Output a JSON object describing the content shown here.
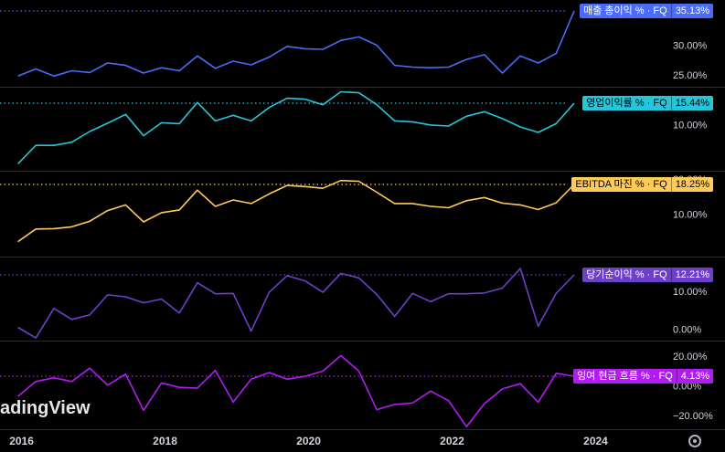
{
  "watermark": "adingView",
  "x_axis": {
    "labels": [
      "2016",
      "2018",
      "2020",
      "2022",
      "2024"
    ],
    "range": [
      2015.7,
      2025.0
    ]
  },
  "chart_data": [
    {
      "type": "line",
      "title": "매출 총이익 % · FQ",
      "last_value_label": "35.13%",
      "color": "#4a6cf7",
      "ylim": [
        23.0,
        37.0
      ],
      "y_ticks": [
        {
          "v": 25,
          "label": "25.00%"
        },
        {
          "v": 30,
          "label": "30.00%"
        }
      ],
      "x": [
        2015.95,
        2016.2,
        2016.45,
        2016.7,
        2016.95,
        2017.2,
        2017.45,
        2017.7,
        2017.95,
        2018.2,
        2018.45,
        2018.7,
        2018.95,
        2019.2,
        2019.45,
        2019.7,
        2019.95,
        2020.2,
        2020.45,
        2020.7,
        2020.95,
        2021.2,
        2021.45,
        2021.7,
        2021.95,
        2022.2,
        2022.45,
        2022.7,
        2022.95,
        2023.2,
        2023.45
      ],
      "values": [
        24.8,
        26.0,
        24.8,
        25.7,
        25.4,
        27.0,
        26.6,
        25.3,
        26.2,
        25.7,
        28.2,
        26.1,
        27.3,
        26.7,
        28.0,
        29.8,
        29.4,
        29.3,
        30.8,
        31.4,
        30.0,
        26.6,
        26.3,
        26.2,
        26.3,
        27.6,
        28.4,
        25.3,
        28.2,
        27.0,
        28.6
      ]
    },
    {
      "type": "line",
      "title": "영업이익률 % · FQ",
      "last_value_label": "15.44%",
      "color": "#26c6da",
      "ylim": [
        0.0,
        18.0
      ],
      "y_ticks": [
        {
          "v": 10,
          "label": "10.00%"
        }
      ],
      "x": [
        2015.95,
        2016.2,
        2016.45,
        2016.7,
        2016.95,
        2017.2,
        2017.45,
        2017.7,
        2017.95,
        2018.2,
        2018.45,
        2018.7,
        2018.95,
        2019.2,
        2019.45,
        2019.7,
        2019.95,
        2020.2,
        2020.45,
        2020.7,
        2020.95,
        2021.2,
        2021.45,
        2021.7,
        2021.95,
        2022.2,
        2022.45,
        2022.7,
        2022.95,
        2023.2,
        2023.45
      ],
      "values": [
        1.5,
        5.5,
        5.5,
        6.2,
        8.5,
        10.3,
        12.2,
        7.6,
        10.4,
        10.2,
        14.8,
        10.8,
        12.0,
        10.8,
        13.7,
        15.7,
        15.5,
        14.3,
        17.1,
        16.9,
        14.3,
        10.8,
        10.6,
        9.9,
        9.7,
        11.8,
        12.8,
        11.3,
        9.5,
        8.3,
        10.2
      ]
    },
    {
      "type": "line",
      "title": "EBITDA 마진 % · FQ",
      "last_value_label": "18.25%",
      "color": "#ffca57",
      "ylim": [
        -2.0,
        22.0
      ],
      "y_ticks": [
        {
          "v": 20,
          "label": "20.00%"
        },
        {
          "v": 10,
          "label": "10.00%"
        }
      ],
      "x": [
        2015.95,
        2016.2,
        2016.45,
        2016.7,
        2016.95,
        2017.2,
        2017.45,
        2017.7,
        2017.95,
        2018.2,
        2018.45,
        2018.7,
        2018.95,
        2019.2,
        2019.45,
        2019.7,
        2019.95,
        2020.2,
        2020.45,
        2020.7,
        2020.95,
        2021.2,
        2021.45,
        2021.7,
        2021.95,
        2022.2,
        2022.45,
        2022.7,
        2022.95,
        2023.2,
        2023.45
      ],
      "values": [
        2.2,
        5.8,
        5.9,
        6.4,
        8.0,
        11.0,
        12.6,
        7.8,
        10.4,
        11.2,
        16.8,
        12.2,
        14.0,
        13.0,
        15.7,
        18.1,
        17.8,
        17.3,
        19.5,
        19.3,
        16.2,
        13.0,
        13.0,
        12.2,
        11.8,
        13.8,
        14.7,
        13.1,
        12.6,
        11.3,
        13.2
      ]
    },
    {
      "type": "line",
      "title": "당기순이익 % · FQ",
      "last_value_label": "12.21%",
      "color": "#6e3fc9",
      "ylim": [
        -3.0,
        19.0
      ],
      "y_ticks": [
        {
          "v": 10,
          "label": "10.00%"
        },
        {
          "v": 0,
          "label": "0.00%"
        }
      ],
      "x": [
        2015.95,
        2016.2,
        2016.45,
        2016.7,
        2016.95,
        2017.2,
        2017.45,
        2017.7,
        2017.95,
        2018.2,
        2018.45,
        2018.7,
        2018.95,
        2019.2,
        2019.45,
        2019.7,
        2019.95,
        2020.2,
        2020.45,
        2020.7,
        2020.95,
        2021.2,
        2021.45,
        2021.7,
        2021.95,
        2022.2,
        2022.45,
        2022.7,
        2022.95,
        2023.2,
        2023.45
      ],
      "values": [
        0.5,
        -2.3,
        5.5,
        2.6,
        3.8,
        9.1,
        8.6,
        7.0,
        8.0,
        4.3,
        12.3,
        9.4,
        9.5,
        -0.5,
        9.8,
        14.2,
        12.8,
        9.8,
        14.8,
        13.6,
        9.2,
        3.4,
        9.5,
        7.3,
        9.4,
        9.4,
        9.6,
        10.9,
        16.1,
        0.8,
        9.5
      ]
    },
    {
      "type": "line",
      "title": "잉여 현금 흐름 % · FQ",
      "last_value_label": "4.13%",
      "color": "#b21cf2",
      "ylim": [
        -28.0,
        30.0
      ],
      "y_ticks": [
        {
          "v": 20,
          "label": "20.00%"
        },
        {
          "v": 0,
          "label": "0.00%"
        },
        {
          "v": -20,
          "label": "−20.00%"
        }
      ],
      "x": [
        2015.95,
        2016.2,
        2016.45,
        2016.7,
        2016.95,
        2017.2,
        2017.45,
        2017.7,
        2017.95,
        2018.2,
        2018.45,
        2018.7,
        2018.95,
        2019.2,
        2019.45,
        2019.7,
        2019.95,
        2020.2,
        2020.45,
        2020.7,
        2020.95,
        2021.2,
        2021.45,
        2021.7,
        2021.95,
        2022.2,
        2022.45,
        2022.7,
        2022.95,
        2023.2,
        2023.45
      ],
      "values": [
        -7.0,
        3.0,
        5.5,
        3.0,
        12.0,
        0.5,
        8.0,
        -16.5,
        2.0,
        -1.0,
        -1.5,
        10.5,
        -11.0,
        4.5,
        9.0,
        4.5,
        6.5,
        10.0,
        20.5,
        10.0,
        -16.0,
        -12.5,
        -11.5,
        -3.5,
        -10.0,
        -27.5,
        -12.0,
        -2.0,
        1.5,
        -11.0,
        8.5
      ]
    }
  ]
}
